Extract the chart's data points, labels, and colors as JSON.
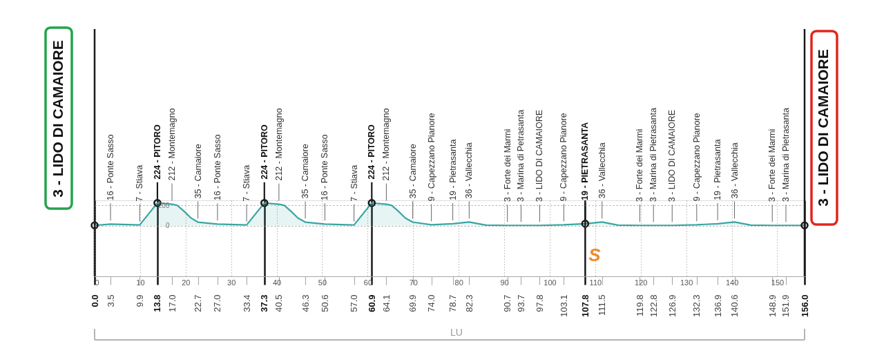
{
  "chart_data": {
    "type": "area",
    "xlim": [
      0,
      156
    ],
    "xticks": [
      0,
      10,
      20,
      30,
      40,
      50,
      60,
      70,
      80,
      90,
      100,
      110,
      120,
      130,
      140,
      150
    ],
    "x2lim": [
      0,
      156
    ],
    "x2ticks": [
      {
        "value": 0,
        "label": "0.0"
      },
      3.5,
      9.9,
      13.8,
      {
        "value": 17,
        "label": "17.0"
      },
      22.7,
      {
        "value": 27,
        "label": "27.0"
      },
      33.4,
      37.3,
      40.5,
      46.3,
      50.6,
      {
        "value": 57,
        "label": "57.0"
      },
      60.9,
      64.1,
      69.9,
      {
        "value": 74,
        "label": "74.0"
      },
      78.7,
      82.3,
      90.7,
      93.7,
      97.8,
      103.1,
      107.8,
      111.5,
      119.8,
      122.8,
      126.9,
      132.3,
      136.9,
      140.6,
      148.9,
      151.9,
      {
        "value": 156,
        "label": "156.0"
      }
    ],
    "ylim": [
      -500,
      250
    ],
    "yticks": [
      0,
      200
    ],
    "grid": true,
    "series": [
      {
        "color": "#3aa6a2",
        "x": [
          0.0,
          3.5,
          9.9,
          13.8,
          17.0,
          18.2,
          19.7,
          21.2,
          22.7,
          27.0,
          33.4,
          37.3,
          40.5,
          41.7,
          43.2,
          44.7,
          46.3,
          50.6,
          57.0,
          60.9,
          64.1,
          65.3,
          66.8,
          68.3,
          69.9,
          74.0,
          78.7,
          82.3,
          86.0,
          90.7,
          93.7,
          97.8,
          103.1,
          107.8,
          111.5,
          115.0,
          119.8,
          122.8,
          126.9,
          132.3,
          136.9,
          140.6,
          144.2,
          148.9,
          151.9,
          156.0
        ],
        "values": [
          3,
          16,
          7,
          224,
          212,
          200,
          140,
          75,
          35,
          16,
          7,
          224,
          212,
          200,
          140,
          75,
          35,
          16,
          7,
          224,
          212,
          200,
          140,
          75,
          35,
          9,
          19,
          36,
          5,
          3,
          3,
          3,
          9,
          19,
          36,
          5,
          3,
          3,
          3,
          9,
          19,
          36,
          5,
          3,
          3,
          3
        ]
      },
      {
        "type": "scatter",
        "marker": "circle",
        "color": "#1a1a1a",
        "x": [
          0.0,
          13.8,
          37.3,
          60.9,
          107.8,
          156.0
        ],
        "values": [
          3,
          224,
          224,
          224,
          19,
          3
        ]
      }
    ],
    "ref_lines": [
      {
        "axis": "x",
        "value": 107.8,
        "label": "S",
        "color": "#1a1a1a"
      }
    ],
    "annotations": [
      "3 - LIDO DI CAMAIORE",
      {
        "text": "16 - Ponte Sasso",
        "x": 3.5,
        "y": 16
      },
      {
        "text": "7 - Stiava",
        "x": 9.9,
        "y": 7
      },
      {
        "text": "224 - PITORO",
        "x": 13.8,
        "y": 224
      },
      {
        "text": "212 - Montemagno",
        "x": 17.0,
        "y": 212
      },
      {
        "text": "35 - Camaiore",
        "x": 22.7,
        "y": 35
      },
      {
        "text": "16 - Ponte Sasso",
        "x": 27.0,
        "y": 16
      },
      {
        "text": "7 - Stiava",
        "x": 33.4,
        "y": 7
      },
      {
        "text": "224 - PITORO",
        "x": 37.3,
        "y": 224
      },
      {
        "text": "212 - Montemagno",
        "x": 40.5,
        "y": 212
      },
      {
        "text": "35 - Camaiore",
        "x": 46.3,
        "y": 35
      },
      {
        "text": "16 - Ponte Sasso",
        "x": 50.6,
        "y": 16
      },
      {
        "text": "7 - Stiava",
        "x": 57.0,
        "y": 7
      },
      {
        "text": "224 - PITORO",
        "x": 60.9,
        "y": 224
      },
      {
        "text": "212 - Montemagno",
        "x": 64.1,
        "y": 212
      },
      {
        "text": "35 - Camaiore",
        "x": 69.9,
        "y": 35
      },
      {
        "text": "9 - Capezzano Pianore",
        "x": 74.0,
        "y": 9
      },
      {
        "text": "19 - Pietrasanta",
        "x": 78.7,
        "y": 19
      },
      {
        "text": "36 - Vallecchia",
        "x": 82.3,
        "y": 36
      },
      {
        "text": "3 - Forte dei Marmi",
        "x": 90.7,
        "y": 3
      },
      {
        "text": "3 - Marina di Petrasanta",
        "x": 93.7,
        "y": 3
      },
      {
        "text": "3 - LIDO DI CAMAIORE",
        "x": 97.8,
        "y": 3
      },
      {
        "text": "9 - Capezzano Pianore",
        "x": 103.1,
        "y": 9
      },
      {
        "text": "19 - PIETRASANTA",
        "x": 107.8,
        "y": 19
      },
      {
        "text": "36 - Vallecchia",
        "x": 111.5,
        "y": 36
      },
      {
        "text": "3 - Forte dei Marmi",
        "x": 119.8,
        "y": 3
      },
      {
        "text": "3 - Marina di Pietrasanta",
        "x": 122.8,
        "y": 3
      },
      {
        "text": "3 - LIDO DI CAMAIORE",
        "x": 126.9,
        "y": 3
      },
      {
        "text": "9 - Capezzano Pianore",
        "x": 132.3,
        "y": 9
      },
      {
        "text": "19 - Pietrasanta",
        "x": 136.9,
        "y": 19
      },
      {
        "text": "36 - Vallecchia",
        "x": 140.6,
        "y": 36
      },
      {
        "text": "3 - Forte dei Marmi",
        "x": 148.9,
        "y": 3
      },
      {
        "text": "3 - Marina di Pietrasanta",
        "x": 151.9,
        "y": 3
      },
      "3 - LIDO DI CAMAIORE",
      "LU"
    ]
  }
}
